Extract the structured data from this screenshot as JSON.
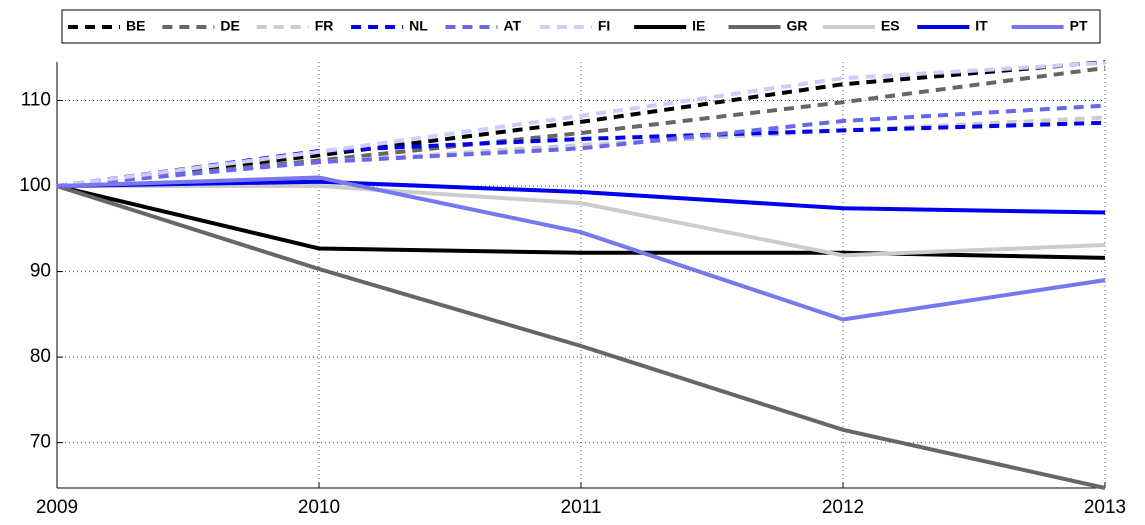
{
  "chart_data": {
    "type": "line",
    "x": [
      2009,
      2010,
      2011,
      2012,
      2013
    ],
    "xlim": [
      2009,
      2013
    ],
    "xticks": [
      2009,
      2010,
      2011,
      2012,
      2013
    ],
    "ylim": [
      64.7,
      114.5
    ],
    "yticks": [
      70,
      80,
      90,
      100,
      110
    ],
    "grid": true,
    "legend": "top",
    "series": [
      {
        "name": "BE",
        "color": "#000000",
        "dashed": true,
        "values": [
          100,
          103.6,
          107.5,
          111.9,
          114.5
        ]
      },
      {
        "name": "DE",
        "color": "#666666",
        "dashed": true,
        "values": [
          100,
          103,
          106.2,
          109.8,
          113.8
        ]
      },
      {
        "name": "FR",
        "color": "#cccccc",
        "dashed": true,
        "values": [
          100,
          102.8,
          104.8,
          106.5,
          108
        ]
      },
      {
        "name": "NL",
        "color": "#0000ee",
        "dashed": true,
        "values": [
          100,
          104.1,
          105.5,
          106.5,
          107.4
        ]
      },
      {
        "name": "AT",
        "color": "#6666ee",
        "dashed": true,
        "values": [
          100,
          102.8,
          104.4,
          107.6,
          109.4
        ]
      },
      {
        "name": "FI",
        "color": "#ccccff",
        "dashed": true,
        "values": [
          100,
          104,
          108.2,
          112.6,
          114.4
        ]
      },
      {
        "name": "IE",
        "color": "#000000",
        "dashed": false,
        "values": [
          100,
          92.7,
          92.2,
          92.2,
          91.6
        ]
      },
      {
        "name": "GR",
        "color": "#666666",
        "dashed": false,
        "values": [
          100,
          90.3,
          81.3,
          71.5,
          64.7
        ]
      },
      {
        "name": "ES",
        "color": "#cccccc",
        "dashed": false,
        "values": [
          100,
          100,
          98,
          91.9,
          93.1
        ]
      },
      {
        "name": "IT",
        "color": "#0000ee",
        "dashed": false,
        "values": [
          100,
          100.5,
          99.3,
          97.4,
          96.9
        ]
      },
      {
        "name": "PT",
        "color": "#7777ee",
        "dashed": false,
        "values": [
          100,
          101,
          94.6,
          84.4,
          89
        ]
      }
    ]
  }
}
